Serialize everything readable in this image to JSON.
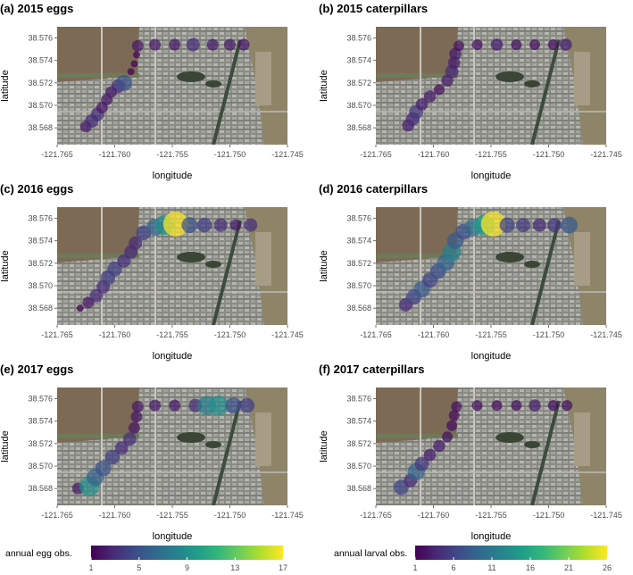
{
  "colors": {
    "viridis": [
      "#440154",
      "#482878",
      "#3e4a89",
      "#31688e",
      "#26828e",
      "#1f9e89",
      "#35b779",
      "#6ece58",
      "#b5de2b",
      "#fde725"
    ],
    "background": "#ffffff",
    "tick_text": "#4d4d4d"
  },
  "chart_data": [
    {
      "type": "scatter",
      "title": "(a) 2015 eggs",
      "xlabel": "longitude",
      "ylabel": "latitude",
      "xlim": [
        -121.765,
        -121.745
      ],
      "ylim": [
        38.5665,
        38.577
      ],
      "xticks": [
        "-121.765",
        "-121.760",
        "-121.755",
        "-121.750",
        "-121.745"
      ],
      "yticks": [
        "38.568",
        "38.570",
        "38.572",
        "38.574",
        "38.576"
      ],
      "background": "satellite-image",
      "color_scale": "annual egg obs.",
      "points": [
        {
          "x": -121.7625,
          "y": 38.5681,
          "v": 2
        },
        {
          "x": -121.762,
          "y": 38.5686,
          "v": 3
        },
        {
          "x": -121.7615,
          "y": 38.5692,
          "v": 3
        },
        {
          "x": -121.7611,
          "y": 38.5698,
          "v": 2
        },
        {
          "x": -121.7607,
          "y": 38.5705,
          "v": 2
        },
        {
          "x": -121.7603,
          "y": 38.5712,
          "v": 2
        },
        {
          "x": -121.7597,
          "y": 38.5717,
          "v": 3
        },
        {
          "x": -121.7592,
          "y": 38.572,
          "v": 5
        },
        {
          "x": -121.7586,
          "y": 38.573,
          "v": 1
        },
        {
          "x": -121.7583,
          "y": 38.5737,
          "v": 1
        },
        {
          "x": -121.7581,
          "y": 38.5745,
          "v": 1
        },
        {
          "x": -121.758,
          "y": 38.5753,
          "v": 2
        },
        {
          "x": -121.7565,
          "y": 38.5754,
          "v": 2
        },
        {
          "x": -121.7548,
          "y": 38.5754,
          "v": 2
        },
        {
          "x": -121.7532,
          "y": 38.5754,
          "v": 3
        },
        {
          "x": -121.7515,
          "y": 38.5754,
          "v": 2
        },
        {
          "x": -121.75,
          "y": 38.5754,
          "v": 2
        },
        {
          "x": -121.7488,
          "y": 38.5754,
          "v": 2
        }
      ]
    },
    {
      "type": "scatter",
      "title": "(b) 2015 caterpillars",
      "xlabel": "longitude",
      "ylabel": "latitude",
      "xlim": [
        -121.765,
        -121.745
      ],
      "ylim": [
        38.5665,
        38.577
      ],
      "xticks": [
        "-121.765",
        "-121.760",
        "-121.755",
        "-121.750",
        "-121.745"
      ],
      "yticks": [
        "38.568",
        "38.570",
        "38.572",
        "38.574",
        "38.576"
      ],
      "background": "satellite-image",
      "color_scale": "annual larval obs.",
      "points": [
        {
          "x": -121.7622,
          "y": 38.5682,
          "v": 3
        },
        {
          "x": -121.7618,
          "y": 38.5688,
          "v": 4
        },
        {
          "x": -121.7615,
          "y": 38.5694,
          "v": 5
        },
        {
          "x": -121.761,
          "y": 38.5701,
          "v": 3
        },
        {
          "x": -121.7603,
          "y": 38.5708,
          "v": 3
        },
        {
          "x": -121.7595,
          "y": 38.5714,
          "v": 2
        },
        {
          "x": -121.7588,
          "y": 38.5722,
          "v": 3
        },
        {
          "x": -121.7584,
          "y": 38.573,
          "v": 4
        },
        {
          "x": -121.7582,
          "y": 38.5738,
          "v": 3
        },
        {
          "x": -121.7581,
          "y": 38.5746,
          "v": 3
        },
        {
          "x": -121.7578,
          "y": 38.5753,
          "v": 2
        },
        {
          "x": -121.7562,
          "y": 38.5754,
          "v": 2
        },
        {
          "x": -121.7545,
          "y": 38.5754,
          "v": 3
        },
        {
          "x": -121.7528,
          "y": 38.5754,
          "v": 2
        },
        {
          "x": -121.7512,
          "y": 38.5754,
          "v": 2
        },
        {
          "x": -121.7496,
          "y": 38.5754,
          "v": 2
        },
        {
          "x": -121.7485,
          "y": 38.5754,
          "v": 3
        }
      ]
    },
    {
      "type": "scatter",
      "title": "(c) 2016 eggs",
      "xlabel": "longitude",
      "ylabel": "latitude",
      "xlim": [
        -121.765,
        -121.745
      ],
      "ylim": [
        38.5665,
        38.577
      ],
      "xticks": [
        "-121.765",
        "-121.760",
        "-121.755",
        "-121.750",
        "-121.745"
      ],
      "yticks": [
        "38.568",
        "38.570",
        "38.572",
        "38.574",
        "38.576"
      ],
      "background": "satellite-image",
      "color_scale": "annual egg obs.",
      "points": [
        {
          "x": -121.763,
          "y": 38.568,
          "v": 1
        },
        {
          "x": -121.7623,
          "y": 38.5685,
          "v": 2
        },
        {
          "x": -121.7616,
          "y": 38.5691,
          "v": 3
        },
        {
          "x": -121.761,
          "y": 38.5699,
          "v": 3
        },
        {
          "x": -121.7606,
          "y": 38.5707,
          "v": 4
        },
        {
          "x": -121.76,
          "y": 38.5715,
          "v": 4
        },
        {
          "x": -121.7592,
          "y": 38.5722,
          "v": 3
        },
        {
          "x": -121.7586,
          "y": 38.573,
          "v": 3
        },
        {
          "x": -121.7582,
          "y": 38.5738,
          "v": 3
        },
        {
          "x": -121.7575,
          "y": 38.5747,
          "v": 4
        },
        {
          "x": -121.7565,
          "y": 38.5752,
          "v": 6
        },
        {
          "x": -121.7557,
          "y": 38.5754,
          "v": 9
        },
        {
          "x": -121.7547,
          "y": 38.5755,
          "v": 17
        },
        {
          "x": -121.7535,
          "y": 38.5754,
          "v": 5
        },
        {
          "x": -121.7522,
          "y": 38.5754,
          "v": 4
        },
        {
          "x": -121.7508,
          "y": 38.5754,
          "v": 3
        },
        {
          "x": -121.7495,
          "y": 38.5754,
          "v": 2
        },
        {
          "x": -121.7482,
          "y": 38.5754,
          "v": 3
        }
      ]
    },
    {
      "type": "scatter",
      "title": "(d) 2016 caterpillars",
      "xlabel": "longitude",
      "ylabel": "latitude",
      "xlim": [
        -121.765,
        -121.745
      ],
      "ylim": [
        38.5665,
        38.577
      ],
      "xticks": [
        "-121.765",
        "-121.760",
        "-121.755",
        "-121.750",
        "-121.745"
      ],
      "yticks": [
        "38.568",
        "38.570",
        "38.572",
        "38.574",
        "38.576"
      ],
      "background": "satellite-image",
      "color_scale": "annual larval obs.",
      "points": [
        {
          "x": -121.7624,
          "y": 38.5683,
          "v": 4
        },
        {
          "x": -121.7617,
          "y": 38.569,
          "v": 6
        },
        {
          "x": -121.761,
          "y": 38.5697,
          "v": 8
        },
        {
          "x": -121.7603,
          "y": 38.5705,
          "v": 6
        },
        {
          "x": -121.7596,
          "y": 38.5713,
          "v": 7
        },
        {
          "x": -121.7589,
          "y": 38.5721,
          "v": 9
        },
        {
          "x": -121.7584,
          "y": 38.573,
          "v": 12
        },
        {
          "x": -121.7581,
          "y": 38.574,
          "v": 8
        },
        {
          "x": -121.7574,
          "y": 38.5748,
          "v": 7
        },
        {
          "x": -121.7565,
          "y": 38.5752,
          "v": 10
        },
        {
          "x": -121.7556,
          "y": 38.5754,
          "v": 15
        },
        {
          "x": -121.7548,
          "y": 38.5755,
          "v": 26
        },
        {
          "x": -121.7536,
          "y": 38.5754,
          "v": 6
        },
        {
          "x": -121.7522,
          "y": 38.5754,
          "v": 5
        },
        {
          "x": -121.7508,
          "y": 38.5754,
          "v": 4
        },
        {
          "x": -121.7495,
          "y": 38.5754,
          "v": 5
        },
        {
          "x": -121.7482,
          "y": 38.5754,
          "v": 8
        }
      ]
    },
    {
      "type": "scatter",
      "title": "(e) 2017 eggs",
      "xlabel": "longitude",
      "ylabel": "latitude",
      "xlim": [
        -121.765,
        -121.745
      ],
      "ylim": [
        38.5665,
        38.577
      ],
      "xticks": [
        "-121.765",
        "-121.760",
        "-121.755",
        "-121.750",
        "-121.745"
      ],
      "yticks": [
        "38.568",
        "38.570",
        "38.572",
        "38.574",
        "38.576"
      ],
      "background": "satellite-image",
      "color_scale": "annual egg obs.",
      "points": [
        {
          "x": -121.7632,
          "y": 38.568,
          "v": 2
        },
        {
          "x": -121.7622,
          "y": 38.5682,
          "v": 9
        },
        {
          "x": -121.7617,
          "y": 38.569,
          "v": 6
        },
        {
          "x": -121.761,
          "y": 38.5698,
          "v": 5
        },
        {
          "x": -121.7602,
          "y": 38.5708,
          "v": 4
        },
        {
          "x": -121.7594,
          "y": 38.5716,
          "v": 3
        },
        {
          "x": -121.7587,
          "y": 38.5724,
          "v": 3
        },
        {
          "x": -121.7583,
          "y": 38.5734,
          "v": 2
        },
        {
          "x": -121.7581,
          "y": 38.5744,
          "v": 2
        },
        {
          "x": -121.758,
          "y": 38.5753,
          "v": 2
        },
        {
          "x": -121.7565,
          "y": 38.5754,
          "v": 2
        },
        {
          "x": -121.7548,
          "y": 38.5754,
          "v": 2
        },
        {
          "x": -121.753,
          "y": 38.5754,
          "v": 3
        },
        {
          "x": -121.752,
          "y": 38.5754,
          "v": 8
        },
        {
          "x": -121.751,
          "y": 38.5754,
          "v": 9
        },
        {
          "x": -121.7497,
          "y": 38.5754,
          "v": 5
        },
        {
          "x": -121.7485,
          "y": 38.5754,
          "v": 4
        }
      ]
    },
    {
      "type": "scatter",
      "title": "(f) 2017 caterpillars",
      "xlabel": "longitude",
      "ylabel": "latitude",
      "xlim": [
        -121.765,
        -121.745
      ],
      "ylim": [
        38.5665,
        38.577
      ],
      "xticks": [
        "-121.765",
        "-121.760",
        "-121.755",
        "-121.750",
        "-121.745"
      ],
      "yticks": [
        "38.568",
        "38.570",
        "38.572",
        "38.574",
        "38.576"
      ],
      "background": "satellite-image",
      "color_scale": "annual larval obs.",
      "points": [
        {
          "x": -121.7628,
          "y": 38.5681,
          "v": 6
        },
        {
          "x": -121.762,
          "y": 38.5687,
          "v": 4
        },
        {
          "x": -121.7615,
          "y": 38.5695,
          "v": 9
        },
        {
          "x": -121.761,
          "y": 38.5702,
          "v": 5
        },
        {
          "x": -121.7603,
          "y": 38.571,
          "v": 3
        },
        {
          "x": -121.7595,
          "y": 38.5718,
          "v": 3
        },
        {
          "x": -121.7588,
          "y": 38.5726,
          "v": 2
        },
        {
          "x": -121.7584,
          "y": 38.5736,
          "v": 2
        },
        {
          "x": -121.7582,
          "y": 38.5745,
          "v": 2
        },
        {
          "x": -121.758,
          "y": 38.5753,
          "v": 2
        },
        {
          "x": -121.7562,
          "y": 38.5754,
          "v": 2
        },
        {
          "x": -121.7545,
          "y": 38.5754,
          "v": 2
        },
        {
          "x": -121.7528,
          "y": 38.5754,
          "v": 2
        },
        {
          "x": -121.7512,
          "y": 38.5754,
          "v": 3
        },
        {
          "x": -121.7496,
          "y": 38.5754,
          "v": 2
        },
        {
          "x": -121.7484,
          "y": 38.5754,
          "v": 2
        }
      ]
    }
  ],
  "legends": [
    {
      "title": "annual egg obs.",
      "min": 1,
      "max": 17,
      "ticks": [
        "1",
        "5",
        "9",
        "13",
        "17"
      ]
    },
    {
      "title": "annual larval obs.",
      "min": 1,
      "max": 26,
      "ticks": [
        "1",
        "6",
        "11",
        "16",
        "21",
        "26"
      ]
    }
  ]
}
